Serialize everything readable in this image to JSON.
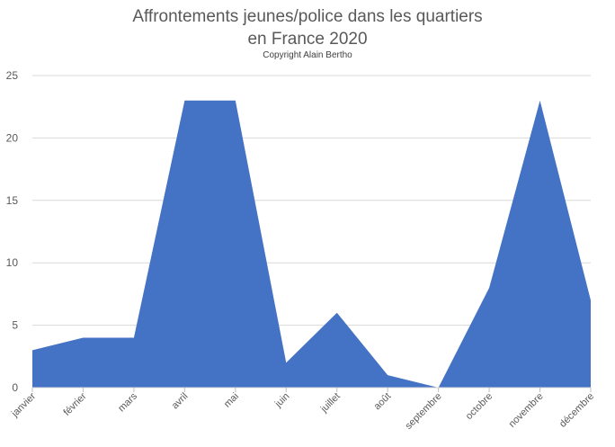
{
  "chart_data": {
    "type": "area",
    "title_lines": [
      "Affrontements jeunes/police dans les quartiers",
      "en France 2020"
    ],
    "subtitle": "Copyright Alain Bertho",
    "categories": [
      "janvier",
      "février",
      "mars",
      "avril",
      "mai",
      "juin",
      "juillet",
      "août",
      "septembre",
      "octobre",
      "novembre",
      "décembre"
    ],
    "series": [
      {
        "values": [
          3,
          4,
          4,
          23,
          23,
          2,
          6,
          1,
          0,
          8,
          23,
          7
        ],
        "color": "#4472C4"
      }
    ],
    "xlabel": "",
    "ylabel": "",
    "ylim": [
      0,
      25
    ],
    "yticks": [
      0,
      5,
      10,
      15,
      20,
      25
    ],
    "grid": true,
    "gridColor": "#d9d9d9",
    "axisLabelColor": "#595959",
    "legend": "none"
  }
}
